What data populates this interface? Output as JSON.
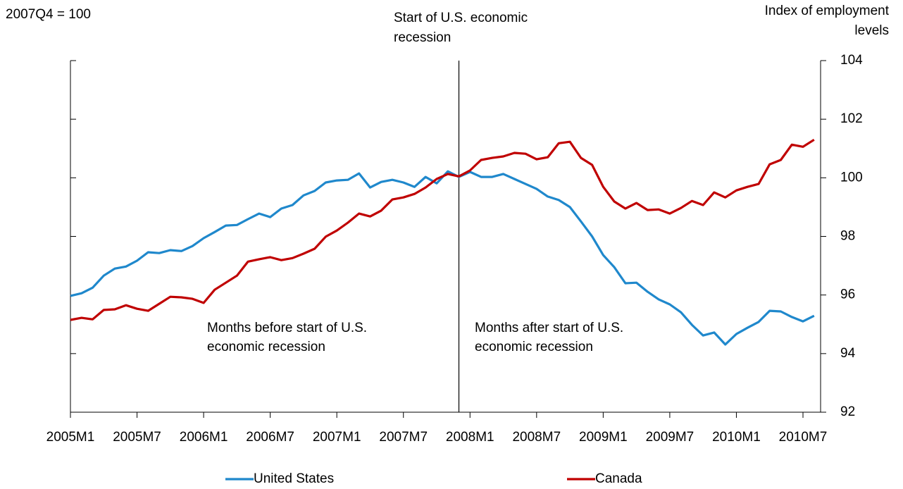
{
  "chart_data": {
    "type": "line",
    "subtitle": "2007Q4 = 100",
    "y_label": [
      "Index of employment",
      "levels"
    ],
    "annotations": [
      [
        "Start of U.S. economic",
        "recession"
      ],
      [
        "Months before start of U.S.",
        "economic recession"
      ],
      [
        "Months after start of U.S.",
        "economic recession"
      ]
    ],
    "categories": [
      "2005M1",
      null,
      null,
      null,
      null,
      null,
      "2005M7",
      null,
      null,
      null,
      null,
      null,
      "2006M1",
      null,
      null,
      null,
      null,
      null,
      "2006M7",
      null,
      null,
      null,
      null,
      null,
      "2007M1",
      null,
      null,
      null,
      null,
      null,
      "2007M7",
      null,
      null,
      null,
      null,
      null,
      "2008M1",
      null,
      null,
      null,
      null,
      null,
      "2008M7",
      null,
      null,
      null,
      null,
      null,
      "2009M1",
      null,
      null,
      null,
      null,
      null,
      "2009M7",
      null,
      null,
      null,
      null,
      null,
      "2010M1",
      null,
      null,
      null,
      null,
      null,
      "2010M7",
      null
    ],
    "series": [
      {
        "name": "United States",
        "color": "#1f88cc",
        "values": [
          95.97,
          96.06,
          96.25,
          96.66,
          96.9,
          96.97,
          97.17,
          97.46,
          97.43,
          97.53,
          97.5,
          97.67,
          97.94,
          98.15,
          98.37,
          98.39,
          98.59,
          98.78,
          98.66,
          98.95,
          99.07,
          99.4,
          99.55,
          99.84,
          99.91,
          99.93,
          100.15,
          99.67,
          99.86,
          99.93,
          99.84,
          99.69,
          100.03,
          99.81,
          100.22,
          100.03,
          100.2,
          100.03,
          100.03,
          100.13,
          99.96,
          99.79,
          99.62,
          99.36,
          99.24,
          99.0,
          98.51,
          98.0,
          97.36,
          96.95,
          96.4,
          96.42,
          96.11,
          95.85,
          95.68,
          95.41,
          94.98,
          94.62,
          94.72,
          94.31,
          94.67,
          94.88,
          95.08,
          95.46,
          95.44,
          95.25,
          95.1,
          95.29
        ]
      },
      {
        "name": "Canada",
        "color": "#c00000",
        "values": [
          95.15,
          95.22,
          95.17,
          95.49,
          95.51,
          95.65,
          95.53,
          95.46,
          95.7,
          95.94,
          95.92,
          95.87,
          95.73,
          96.18,
          96.42,
          96.66,
          97.14,
          97.22,
          97.29,
          97.19,
          97.26,
          97.41,
          97.58,
          97.99,
          98.2,
          98.47,
          98.78,
          98.68,
          98.88,
          99.26,
          99.33,
          99.45,
          99.67,
          99.96,
          100.13,
          100.05,
          100.25,
          100.61,
          100.68,
          100.73,
          100.85,
          100.82,
          100.63,
          100.7,
          101.18,
          101.23,
          100.68,
          100.44,
          99.69,
          99.19,
          98.95,
          99.14,
          98.9,
          98.92,
          98.78,
          98.97,
          99.21,
          99.07,
          99.5,
          99.33,
          99.57,
          99.69,
          99.79,
          100.46,
          100.61,
          101.13,
          101.06,
          101.3
        ]
      }
    ],
    "ylim": [
      92,
      104
    ],
    "yticks": [
      92,
      94,
      96,
      98,
      100,
      102,
      104
    ],
    "legend": "bottom"
  }
}
